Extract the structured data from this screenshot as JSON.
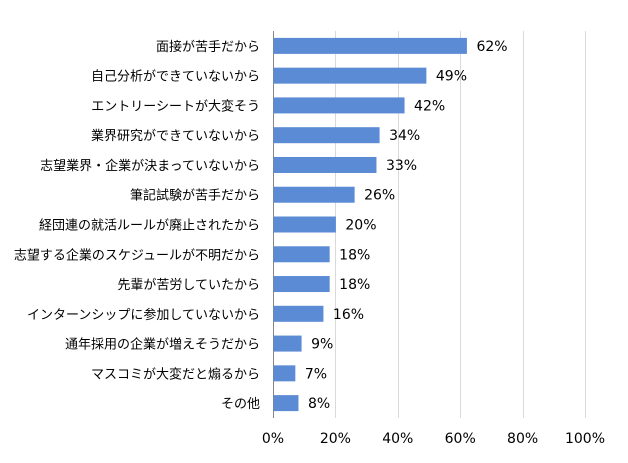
{
  "chart_data": {
    "type": "bar",
    "orientation": "horizontal",
    "title": "",
    "xlabel": "",
    "ylabel": "",
    "categories": [
      "面接が苦手だから",
      "自己分析ができていないから",
      "エントリーシートが大変そう",
      "業界研究ができていないから",
      "志望業界・企業が決まっていないから",
      "筆記試験が苦手だから",
      "経団連の就活ルールが廃止されたから",
      "志望する企業のスケジュールが不明だから",
      "先輩が苦労していたから",
      "インターンシップに参加していないから",
      "通年採用の企業が増えそうだから",
      "マスコミが大変だと煽るから",
      "その他"
    ],
    "values": [
      62,
      49,
      42,
      34,
      33,
      26,
      20,
      18,
      18,
      16,
      9,
      7,
      8
    ],
    "data_labels": [
      "62%",
      "49%",
      "42%",
      "34%",
      "33%",
      "26%",
      "20%",
      "18%",
      "18%",
      "16%",
      "9%",
      "7%",
      "8%"
    ],
    "xlim": [
      0,
      100
    ],
    "x_ticks": [
      0,
      20,
      40,
      60,
      80,
      100
    ],
    "x_tick_labels": [
      "0%",
      "20%",
      "40%",
      "60%",
      "80%",
      "100%"
    ],
    "grid": true,
    "legend": "none",
    "bar_color": "#5b8bd4"
  }
}
